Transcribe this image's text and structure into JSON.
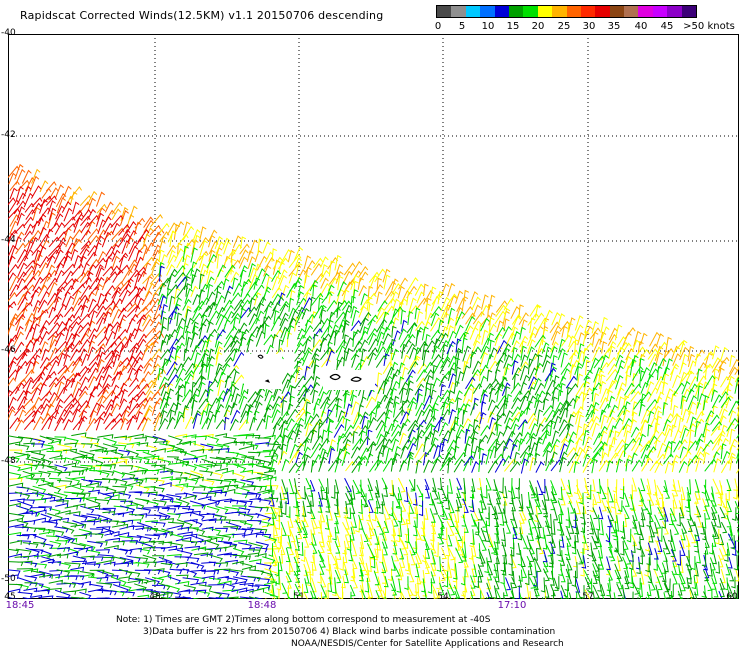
{
  "header": {
    "title": "Rapidscat Corrected Winds(12.5KM) v1.1 20150706 descending"
  },
  "colorbar": {
    "segments": [
      "#4a4a4a",
      "#8f8f8f",
      "#00c8ff",
      "#0070ff",
      "#0000d8",
      "#00a000",
      "#00e000",
      "#ffff00",
      "#ffb400",
      "#ff6400",
      "#ff2a00",
      "#e60000",
      "#8b4513",
      "#b07050",
      "#e000e0",
      "#c800ff",
      "#8c00c8",
      "#3c0078"
    ],
    "labels": [
      "0",
      "5",
      "10",
      "15",
      "20",
      "25",
      "30",
      "35",
      "40",
      "45",
      ">50 knots"
    ]
  },
  "axes": {
    "y_labels": [
      "-40",
      "-42",
      "-44",
      "-46",
      "-48",
      "-50"
    ],
    "x_labels": [
      "45",
      "48",
      "51",
      "54",
      "57",
      "60"
    ],
    "time_labels": [
      "18:45",
      "18:48",
      "17:10"
    ]
  },
  "notes": {
    "line1": "Note: 1) Times are GMT 2)Times along bottom correspond to measurement at -40S",
    "line2": "3)Data buffer is 22 hrs from 20150706 4) Black wind barbs indicate possible contamination",
    "line3": "NOAA/NESDIS/Center for Satellite Applications and Research"
  }
}
